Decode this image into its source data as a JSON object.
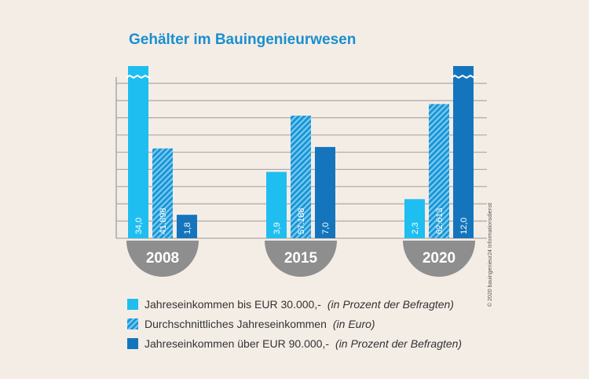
{
  "chart_data": {
    "type": "bar",
    "title": "Gehälter im Bauingenieurwesen",
    "categories": [
      "2008",
      "2015",
      "2020"
    ],
    "series": [
      {
        "name": "Jahreseinkommen bis EUR 30.000,-",
        "note": "(in Prozent der Befragten)",
        "pattern": "solid",
        "color": "#1ebef0",
        "values": [
          34.0,
          3.9,
          2.3
        ],
        "labels": [
          "34,0",
          "3,9",
          "2,3"
        ],
        "truncated": [
          true,
          false,
          false
        ]
      },
      {
        "name": "Durchschnittliches Jahreseinkommen",
        "note": "(in Euro)",
        "pattern": "hatched",
        "color": "#1a96d6",
        "values": [
          41898,
          57188,
          62613
        ],
        "labels": [
          "41.898",
          "57.188",
          "62.613"
        ],
        "truncated": [
          false,
          false,
          false
        ]
      },
      {
        "name": "Jahreseinkommen über EUR 90.000,-",
        "note": "(in Prozent der Befragten)",
        "pattern": "solid",
        "color": "#1475bd",
        "values": [
          1.8,
          7.0,
          12.0
        ],
        "labels": [
          "1,8",
          "7,0",
          "12,0"
        ],
        "truncated": [
          false,
          false,
          true
        ]
      }
    ],
    "grid": true,
    "legend_position": "bottom"
  },
  "credit": "© 2020 bauingenieur24 Informationsdienst",
  "colors": {
    "background": "#f4ede6",
    "title": "#1a8fcf",
    "badge": "#8e8e8e",
    "grid": "#a9a9a9"
  }
}
